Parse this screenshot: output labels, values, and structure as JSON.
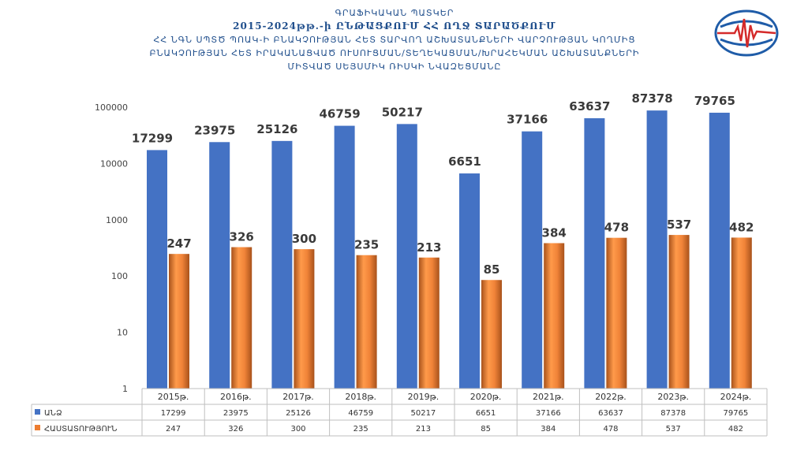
{
  "title": {
    "line1": "ԳՐԱՖԻԿԱԿԱՆ ՊԱՏԿԵՐ",
    "line2": "2015-2024թթ.-ի ԸՆԹԱՑՔՈՒՄ ՀՀ ՈՂՋ ՏԱՐԱԾՔՈՒՄ",
    "line3": "ՀՀ ՆԳՆ ՍՊՏԾ ՊՈԱԿ-Ի ԲՆԱԿՉՈՒԹՅԱՆ ՀԵՏ ՏԱՐՎՈՂ ԱՇԽԱՏԱՆՔՆԵՐԻ ՎԱՐՉՈՒԹՅԱՆ ԿՈՂՄԻՑ",
    "line4": "ԲՆԱԿՉՈՒԹՅԱՆ ՀԵՏ ԻՐԱԿԱՆԱՑՎԱԾ ՈՒՍՈՒՑՄԱՆ/ՏԵՂԵԿԱՑՄԱՆ/ԽՐԱՀԵԿՄԱՆ ԱՇԽԱՏԱՆՔՆԵՐԻ",
    "line5": "ՄԻՏՎԱԾ ՍԵՅՍՄԻԿ ՌԻՍԿԻ ՆՎԱԶԵՑՄԱՆԸ"
  },
  "colors": {
    "blue": "#4472c4",
    "orange": "#ed7d31",
    "title": "#1f4e8c",
    "grid": "#d9d9d9"
  },
  "logo": {
    "icon": "seismograph-globe-icon"
  },
  "chart_data": {
    "type": "bar",
    "yscale": "log",
    "ylim": [
      1,
      100000
    ],
    "yticks": [
      "1",
      "10",
      "100",
      "1000",
      "10000",
      "100000"
    ],
    "categories": [
      "2015թ.",
      "2016թ.",
      "2017թ.",
      "2018թ.",
      "2019թ.",
      "2020թ.",
      "2021թ.",
      "2022թ.",
      "2023թ.",
      "2024թ."
    ],
    "series": [
      {
        "name": "ԱՆՁ",
        "color": "#4472c4",
        "values": [
          17299,
          23975,
          25126,
          46759,
          50217,
          6651,
          37166,
          63637,
          87378,
          79765
        ]
      },
      {
        "name": "ՀԱՍՏԱՏՈՒԹՅՈՒՆ",
        "color": "#ed7d31",
        "values": [
          247,
          326,
          300,
          235,
          213,
          85,
          384,
          478,
          537,
          482
        ]
      }
    ],
    "data_table": true,
    "grid": false
  }
}
